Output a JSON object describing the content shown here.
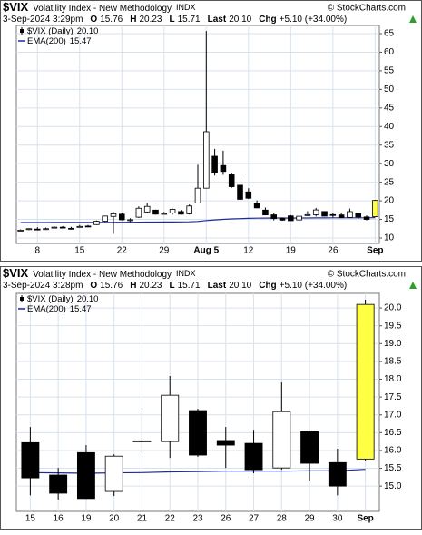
{
  "chart_data": [
    {
      "type": "candlestick",
      "symbol": "$VIX",
      "name": "Volatility Index - New Methodology",
      "exchange": "INDX",
      "source": "© StockCharts.com",
      "date": "3-Sep-2024 3:29pm",
      "quote": [
        {
          "label": "O",
          "value": "15.76"
        },
        {
          "label": "H",
          "value": "20.23"
        },
        {
          "label": "L",
          "value": "15.71"
        },
        {
          "label": "Last",
          "value": "20.10"
        },
        {
          "label": "Chg",
          "value": "+5.10 (+34.00%)"
        }
      ],
      "categories": [
        null,
        null,
        "8",
        null,
        null,
        null,
        null,
        "15",
        null,
        null,
        null,
        null,
        "22",
        null,
        null,
        null,
        null,
        "29",
        null,
        null,
        null,
        null,
        "Aug 5",
        null,
        null,
        null,
        null,
        "12",
        null,
        null,
        null,
        null,
        "19",
        null,
        null,
        null,
        null,
        "26",
        null,
        null,
        null,
        null,
        "Sep"
      ],
      "series": [
        {
          "name": "$VIX (Daily)",
          "last": "20.10",
          "open": [
            12.0,
            12.3,
            12.4,
            12.4,
            12.7,
            12.9,
            12.6,
            12.9,
            13.2,
            13.6,
            14.5,
            15.8,
            16.4,
            14.7,
            15.6,
            17.0,
            17.5,
            16.4,
            16.7,
            17.1,
            16.5,
            19.4,
            23.4,
            32.0,
            29.5,
            27.0,
            24.2,
            22.4,
            19.4,
            17.5,
            16.22,
            15.31,
            15.94,
            14.85,
            16.25,
            16.25,
            17.12,
            16.28,
            16.2,
            15.51,
            16.53,
            15.66,
            15.76
          ],
          "high": [
            12.3,
            12.6,
            12.9,
            12.8,
            13.1,
            13.2,
            13.0,
            13.5,
            13.5,
            14.7,
            16.0,
            17.0,
            16.8,
            15.3,
            18.5,
            19.4,
            17.6,
            17.0,
            17.9,
            17.5,
            19.0,
            29.7,
            65.7,
            34.0,
            33.5,
            27.5,
            26.0,
            23.4,
            20.1,
            18.2,
            16.66,
            15.51,
            16.15,
            15.89,
            17.19,
            18.09,
            17.17,
            16.66,
            16.58,
            17.91,
            16.56,
            16.05,
            20.23
          ],
          "low": [
            11.9,
            12.1,
            12.3,
            12.2,
            12.6,
            12.7,
            12.3,
            12.8,
            12.9,
            13.5,
            14.3,
            11.1,
            14.7,
            14.3,
            15.4,
            16.6,
            16.3,
            16.3,
            16.3,
            16.3,
            16.3,
            19.4,
            23.4,
            26.8,
            27.0,
            23.5,
            20.3,
            20.5,
            18.0,
            16.1,
            14.74,
            14.62,
            14.64,
            14.72,
            15.94,
            15.79,
            15.82,
            15.51,
            15.36,
            15.46,
            15.15,
            14.74,
            15.71
          ],
          "close": [
            12.1,
            12.5,
            12.37,
            12.5,
            12.9,
            12.8,
            12.5,
            13.1,
            13.19,
            14.5,
            15.9,
            16.5,
            14.9,
            14.9,
            18.0,
            18.5,
            16.4,
            16.6,
            17.7,
            16.4,
            18.6,
            23.4,
            38.6,
            27.7,
            27.9,
            23.8,
            20.4,
            20.7,
            18.1,
            16.2,
            15.23,
            14.8,
            14.65,
            15.84,
            16.27,
            17.55,
            15.87,
            16.15,
            15.46,
            17.09,
            15.64,
            15.0,
            20.1
          ]
        },
        {
          "name": "EMA(200)",
          "last": "15.47",
          "color": "#1f2a9c",
          "values": [
            14.15,
            14.15,
            14.16,
            14.16,
            14.17,
            14.17,
            14.17,
            14.17,
            14.18,
            14.18,
            14.19,
            14.21,
            14.22,
            14.22,
            14.24,
            14.27,
            14.28,
            14.29,
            14.31,
            14.32,
            14.36,
            14.45,
            14.69,
            14.85,
            15.0,
            15.12,
            15.2,
            15.28,
            15.33,
            15.36,
            15.38,
            15.37,
            15.36,
            15.37,
            15.38,
            15.4,
            15.41,
            15.42,
            15.42,
            15.42,
            15.43,
            15.43,
            15.47
          ]
        }
      ],
      "ylim": [
        8.53,
        67.2
      ],
      "yticks": [
        10,
        15,
        20,
        25,
        30,
        35,
        40,
        45,
        50,
        55,
        60,
        65
      ],
      "grid": true,
      "colors": {
        "up": "#ffffff",
        "down": "#000000",
        "last": "#ffff44"
      }
    },
    {
      "type": "candlestick",
      "symbol": "$VIX",
      "name": "Volatility Index - New Methodology",
      "exchange": "INDX",
      "source": "© StockCharts.com",
      "date": "3-Sep-2024 3:28pm",
      "quote": [
        {
          "label": "O",
          "value": "15.76"
        },
        {
          "label": "H",
          "value": "20.23"
        },
        {
          "label": "L",
          "value": "15.71"
        },
        {
          "label": "Last",
          "value": "20.10"
        },
        {
          "label": "Chg",
          "value": "+5.10 (+34.00%)"
        }
      ],
      "categories": [
        "15",
        "16",
        "19",
        "20",
        "21",
        "22",
        "23",
        "26",
        "27",
        "28",
        "29",
        "30",
        "Sep"
      ],
      "series": [
        {
          "name": "$VIX (Daily)",
          "last": "20.10",
          "open": [
            16.22,
            15.31,
            15.94,
            14.85,
            16.25,
            16.25,
            17.12,
            16.28,
            16.2,
            15.51,
            16.53,
            15.66,
            15.76
          ],
          "high": [
            16.66,
            15.51,
            16.15,
            15.89,
            17.19,
            18.09,
            17.17,
            16.66,
            16.58,
            17.91,
            16.56,
            16.05,
            20.23
          ],
          "low": [
            14.74,
            14.62,
            14.64,
            14.72,
            15.94,
            15.79,
            15.82,
            15.51,
            15.36,
            15.46,
            15.15,
            14.74,
            15.71
          ],
          "close": [
            15.23,
            14.8,
            14.65,
            15.84,
            16.27,
            17.55,
            15.87,
            16.15,
            15.46,
            17.09,
            15.64,
            15.0,
            20.1
          ]
        },
        {
          "name": "EMA(200)",
          "last": "15.47",
          "color": "#1f2a9c",
          "values": [
            15.38,
            15.37,
            15.36,
            15.37,
            15.38,
            15.4,
            15.41,
            15.42,
            15.42,
            15.42,
            15.43,
            15.43,
            15.47
          ]
        }
      ],
      "ylim": [
        14.29,
        20.41
      ],
      "yticks": [
        {
          "value": 15.0,
          "label": "15.0"
        },
        {
          "value": 15.5,
          "label": "15.5"
        },
        {
          "value": 16.0,
          "label": "16.0"
        },
        {
          "value": 16.5,
          "label": "16.5"
        },
        {
          "value": 17.0,
          "label": "17.0"
        },
        {
          "value": 17.5,
          "label": "17.5"
        },
        {
          "value": 18.0,
          "label": "18.0"
        },
        {
          "value": 18.5,
          "label": "18.5"
        },
        {
          "value": 19.0,
          "label": "19.0"
        },
        {
          "value": 19.5,
          "label": "19.5"
        },
        {
          "value": 20.0,
          "label": "20.0"
        }
      ],
      "grid": true,
      "colors": {
        "up": "#ffffff",
        "down": "#000000",
        "last": "#ffff44"
      }
    }
  ]
}
